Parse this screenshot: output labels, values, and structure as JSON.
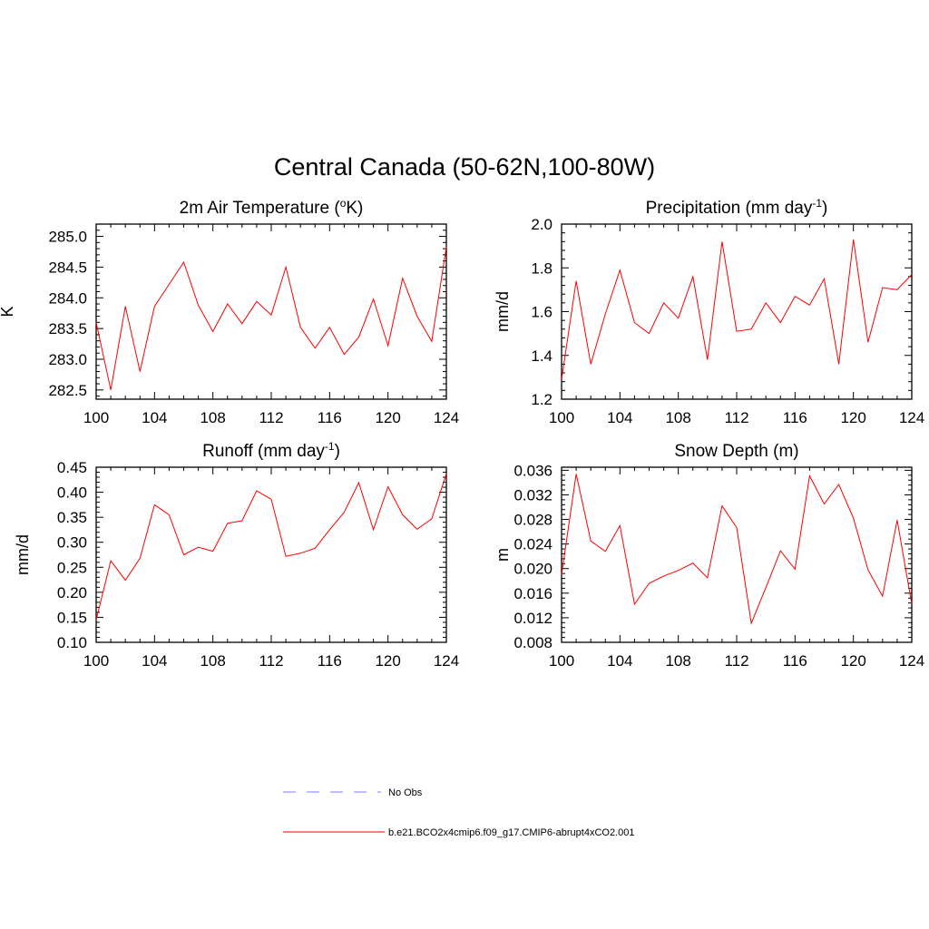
{
  "title": "Central Canada (50-62N,100-80W)",
  "colors": {
    "model": "#ff0000",
    "obs": "#9999ff",
    "axis": "#000000"
  },
  "legend": [
    {
      "label": "No Obs",
      "style": "dashed",
      "color": "#9999ff"
    },
    {
      "label": "b.e21.BCO2x4cmip6.f09_g17.CMIP6-abrupt4xCO2.001",
      "style": "solid",
      "color": "#ff0000"
    }
  ],
  "chart_data": [
    {
      "type": "line",
      "title": "2m Air Temperature (",
      "title_sup": "o",
      "title_tail": "K)",
      "ylabel": "K",
      "xlim": [
        100,
        124
      ],
      "ylim": [
        282.35,
        285.2
      ],
      "xticks": [
        "100",
        "104",
        "108",
        "112",
        "116",
        "120",
        "124"
      ],
      "yticks": [
        "282.5",
        "283.0",
        "283.5",
        "284.0",
        "284.5",
        "285.0"
      ],
      "series": [
        {
          "name": "b.e21.BCO2x4cmip6.f09_g17.CMIP6-abrupt4xCO2.001",
          "x": [
            100,
            101,
            102,
            103,
            104,
            105,
            106,
            107,
            108,
            109,
            110,
            111,
            112,
            113,
            114,
            115,
            116,
            117,
            118,
            119,
            120,
            121,
            122,
            123,
            124
          ],
          "values": [
            283.6,
            282.5,
            283.86,
            282.8,
            283.86,
            284.22,
            284.58,
            283.88,
            283.45,
            283.9,
            283.58,
            283.94,
            283.72,
            284.5,
            283.52,
            283.18,
            283.52,
            283.08,
            283.36,
            283.98,
            283.22,
            284.32,
            283.7,
            283.29,
            284.83
          ]
        }
      ]
    },
    {
      "type": "line",
      "title": "Precipitation (mm day",
      "title_sup": "-1",
      "title_tail": ")",
      "ylabel": "mm/d",
      "xlim": [
        100,
        124
      ],
      "ylim": [
        1.2,
        2.0
      ],
      "xticks": [
        "100",
        "104",
        "108",
        "112",
        "116",
        "120",
        "124"
      ],
      "yticks": [
        "1.2",
        "1.4",
        "1.6",
        "1.8",
        "2.0"
      ],
      "series": [
        {
          "name": "b.e21.BCO2x4cmip6.f09_g17.CMIP6-abrupt4xCO2.001",
          "x": [
            100,
            101,
            102,
            103,
            104,
            105,
            106,
            107,
            108,
            109,
            110,
            111,
            112,
            113,
            114,
            115,
            116,
            117,
            118,
            119,
            120,
            121,
            122,
            123,
            124
          ],
          "values": [
            1.29,
            1.74,
            1.36,
            1.59,
            1.79,
            1.55,
            1.5,
            1.64,
            1.57,
            1.76,
            1.38,
            1.92,
            1.51,
            1.52,
            1.64,
            1.55,
            1.67,
            1.63,
            1.75,
            1.36,
            1.93,
            1.46,
            1.71,
            1.7,
            1.77
          ]
        }
      ]
    },
    {
      "type": "line",
      "title": "Runoff (mm day",
      "title_sup": "-1",
      "title_tail": ")",
      "ylabel": "mm/d",
      "xlim": [
        100,
        124
      ],
      "ylim": [
        0.1,
        0.45
      ],
      "xticks": [
        "100",
        "104",
        "108",
        "112",
        "116",
        "120",
        "124"
      ],
      "yticks": [
        "0.10",
        "0.15",
        "0.20",
        "0.25",
        "0.30",
        "0.35",
        "0.40",
        "0.45"
      ],
      "series": [
        {
          "name": "b.e21.BCO2x4cmip6.f09_g17.CMIP6-abrupt4xCO2.001",
          "x": [
            100,
            101,
            102,
            103,
            104,
            105,
            106,
            107,
            108,
            109,
            110,
            111,
            112,
            113,
            114,
            115,
            116,
            117,
            118,
            119,
            120,
            121,
            122,
            123,
            124
          ],
          "values": [
            0.145,
            0.263,
            0.224,
            0.268,
            0.375,
            0.355,
            0.275,
            0.29,
            0.282,
            0.338,
            0.343,
            0.403,
            0.386,
            0.272,
            0.278,
            0.288,
            0.325,
            0.36,
            0.419,
            0.325,
            0.411,
            0.355,
            0.326,
            0.347,
            0.437
          ]
        }
      ]
    },
    {
      "type": "line",
      "title": "Snow Depth (m)",
      "title_sup": "",
      "title_tail": "",
      "ylabel": "m",
      "xlim": [
        100,
        124
      ],
      "ylim": [
        0.008,
        0.0365
      ],
      "xticks": [
        "100",
        "104",
        "108",
        "112",
        "116",
        "120",
        "124"
      ],
      "yticks": [
        "0.008",
        "0.012",
        "0.016",
        "0.020",
        "0.024",
        "0.028",
        "0.032",
        "0.036"
      ],
      "series": [
        {
          "name": "b.e21.BCO2x4cmip6.f09_g17.CMIP6-abrupt4xCO2.001",
          "x": [
            100,
            101,
            102,
            103,
            104,
            105,
            106,
            107,
            108,
            109,
            110,
            111,
            112,
            113,
            114,
            115,
            116,
            117,
            118,
            119,
            120,
            121,
            122,
            123,
            124
          ],
          "values": [
            0.019,
            0.0354,
            0.0245,
            0.0228,
            0.027,
            0.0142,
            0.0176,
            0.0188,
            0.0197,
            0.0209,
            0.0185,
            0.0302,
            0.0267,
            0.0111,
            0.0169,
            0.0229,
            0.0199,
            0.0351,
            0.0305,
            0.0337,
            0.0282,
            0.0198,
            0.0155,
            0.0279,
            0.0142
          ]
        }
      ]
    }
  ]
}
